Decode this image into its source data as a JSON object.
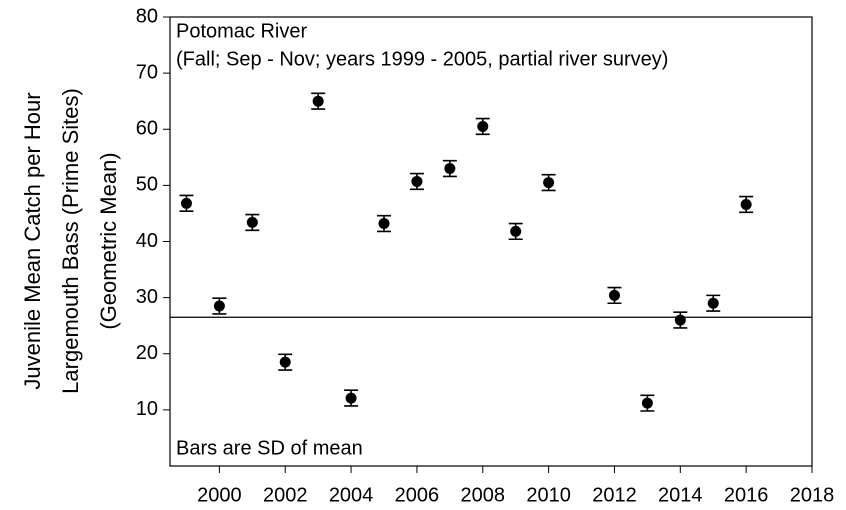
{
  "chart_data": {
    "type": "scatter",
    "y_label": [
      "Juvenile Mean Catch per Hour",
      "Largemouth Bass (Prime Sites)",
      "(Geometric Mean)"
    ],
    "annotations": [
      "Potomac River",
      "(Fall; Sep - Nov; years 1999 - 2005, partial river survey)",
      "Bars are SD of mean"
    ],
    "series": [
      {
        "color": "#000000",
        "x": [
          1999,
          2000,
          2001,
          2002,
          2003,
          2004,
          2005,
          2006,
          2007,
          2008,
          2009,
          2010,
          2012,
          2013,
          2014,
          2015,
          2016
        ],
        "values": [
          46.8,
          28.5,
          43.4,
          18.5,
          65,
          12.1,
          43.2,
          50.7,
          53,
          60.5,
          41.8,
          50.5,
          30.4,
          11.2,
          26,
          29,
          46.6
        ],
        "errors": [
          1.4,
          1.4,
          1.4,
          1.4,
          1.4,
          1.4,
          1.4,
          1.4,
          1.4,
          1.4,
          1.4,
          1.4,
          1.4,
          1.4,
          1.4,
          1.4,
          1.4
        ]
      }
    ],
    "reference_line": 26.5,
    "xlim": [
      1998.5,
      2018
    ],
    "xticks": [
      2000,
      2002,
      2004,
      2006,
      2008,
      2010,
      2012,
      2014,
      2016,
      2018
    ],
    "ylim": [
      0,
      80
    ],
    "yticks": [
      10,
      20,
      30,
      40,
      50,
      60,
      70,
      80
    ]
  }
}
